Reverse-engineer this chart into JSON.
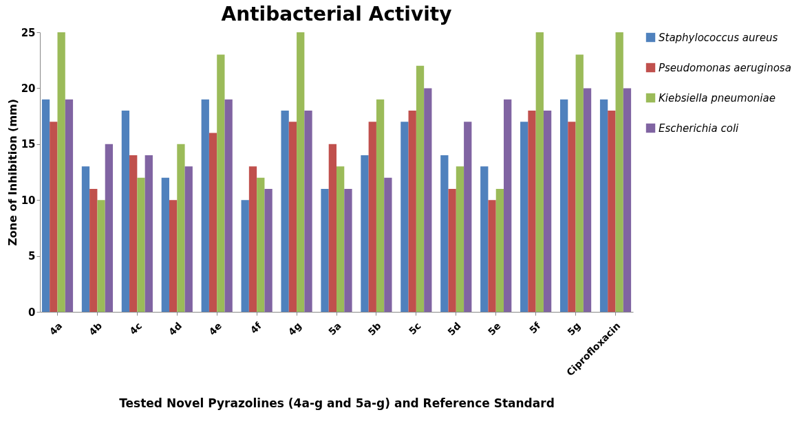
{
  "chart_data": {
    "type": "bar",
    "title": "Antibacterial Activity",
    "xlabel": "Tested Novel Pyrazolines (4a-g and 5a-g) and Reference Standard",
    "ylabel": "Zone of Inhibition (mm)",
    "categories": [
      "4a",
      "4b",
      "4c",
      "4d",
      "4e",
      "4f",
      "4g",
      "5a",
      "5b",
      "5c",
      "5d",
      "5e",
      "5f",
      "5g",
      "Ciprofloxacin"
    ],
    "series": [
      {
        "name": "Staphylococcus aureus",
        "color": "#4f81bd",
        "values": [
          19,
          13,
          18,
          12,
          19,
          10,
          18,
          11,
          14,
          17,
          14,
          13,
          17,
          19,
          19
        ]
      },
      {
        "name": "Pseudomonas aeruginosa",
        "color": "#c0504d",
        "values": [
          17,
          11,
          14,
          10,
          16,
          13,
          17,
          15,
          17,
          18,
          11,
          10,
          18,
          17,
          18
        ]
      },
      {
        "name": "Kiebsiella pneumoniae",
        "color": "#9bbb59",
        "values": [
          25,
          10,
          12,
          15,
          23,
          12,
          25,
          13,
          19,
          22,
          13,
          11,
          25,
          23,
          25
        ]
      },
      {
        "name": "Escherichia  coli",
        "color": "#8064a2",
        "values": [
          19,
          15,
          14,
          13,
          19,
          11,
          18,
          11,
          12,
          20,
          17,
          19,
          18,
          20,
          20
        ]
      }
    ],
    "ylim": [
      0,
      25
    ],
    "yticks": [
      0,
      5,
      10,
      15,
      20,
      25
    ],
    "legend": "right"
  }
}
